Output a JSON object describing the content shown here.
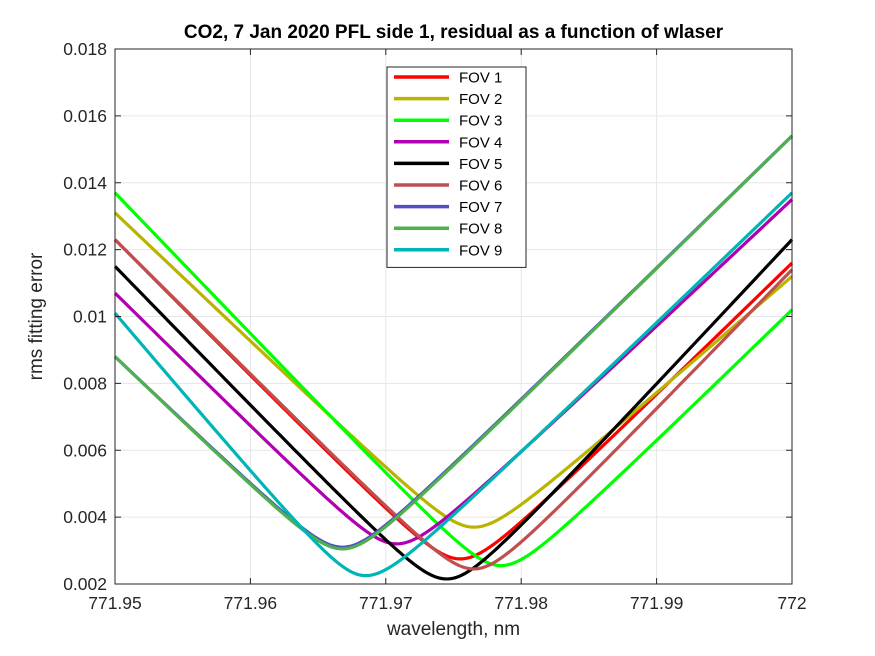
{
  "chart_data": {
    "type": "line",
    "title": "CO2, 7 Jan 2020 PFL side 1, residual as a function of wlaser",
    "xlabel": "wavelength, nm",
    "ylabel": "rms fitting error",
    "xlim": [
      771.95,
      772.0
    ],
    "ylim": [
      0.002,
      0.018
    ],
    "xticks": [
      771.95,
      771.96,
      771.97,
      771.98,
      771.99,
      772.0
    ],
    "xtick_labels": [
      "771.95",
      "771.96",
      "771.97",
      "771.98",
      "771.99",
      "772"
    ],
    "yticks": [
      0.002,
      0.004,
      0.006,
      0.008,
      0.01,
      0.012,
      0.014,
      0.016,
      0.018
    ],
    "ytick_labels": [
      "0.002",
      "0.004",
      "0.006",
      "0.008",
      "0.01",
      "0.012",
      "0.014",
      "0.016",
      "0.018"
    ],
    "grid": true,
    "legend_position": "top-center",
    "series": [
      {
        "name": "FOV 1",
        "color": "#ff0000",
        "x_min": 771.9755,
        "y_min": 0.00275,
        "y_left": 0.0123,
        "y_right": 0.0116
      },
      {
        "name": "FOV 2",
        "color": "#b8b400",
        "x_min": 771.9765,
        "y_min": 0.0037,
        "y_left": 0.0131,
        "y_right": 0.0112
      },
      {
        "name": "FOV 3",
        "color": "#00ff00",
        "x_min": 771.9785,
        "y_min": 0.00255,
        "y_left": 0.0137,
        "y_right": 0.0102
      },
      {
        "name": "FOV 4",
        "color": "#b000b0",
        "x_min": 771.9708,
        "y_min": 0.0032,
        "y_left": 0.0107,
        "y_right": 0.0135
      },
      {
        "name": "FOV 5",
        "color": "#000000",
        "x_min": 771.9745,
        "y_min": 0.00215,
        "y_left": 0.0115,
        "y_right": 0.0123
      },
      {
        "name": "FOV 6",
        "color": "#c05050",
        "x_min": 771.9765,
        "y_min": 0.00245,
        "y_left": 0.0123,
        "y_right": 0.0114
      },
      {
        "name": "FOV 7",
        "color": "#5050c0",
        "x_min": 771.9668,
        "y_min": 0.0031,
        "y_left": 0.0088,
        "y_right": 0.0154
      },
      {
        "name": "FOV 8",
        "color": "#4fb04f",
        "x_min": 771.9668,
        "y_min": 0.00305,
        "y_left": 0.0088,
        "y_right": 0.0154
      },
      {
        "name": "FOV 9",
        "color": "#00b5b5",
        "x_min": 771.9685,
        "y_min": 0.00225,
        "y_left": 0.0101,
        "y_right": 0.0137
      }
    ]
  }
}
